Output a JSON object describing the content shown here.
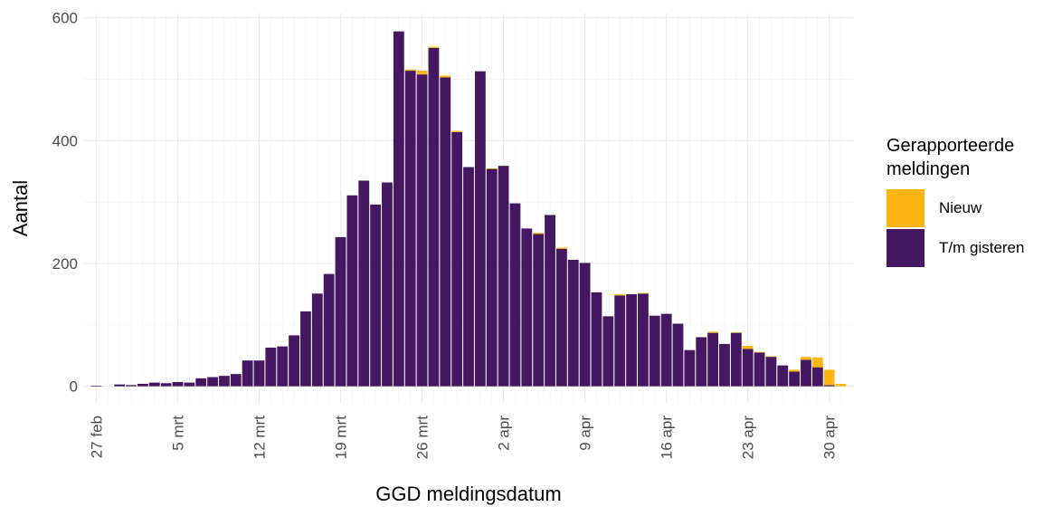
{
  "chart_data": {
    "type": "stacked_bar",
    "x_label": "GGD meldingsdatum",
    "y_label": "Aantal",
    "legend_title": "Gerapporteerde meldingen",
    "categories": [
      "27 feb",
      null,
      null,
      null,
      null,
      null,
      null,
      "5 mrt",
      null,
      null,
      null,
      null,
      null,
      null,
      "12 mrt",
      null,
      null,
      null,
      null,
      null,
      null,
      "19 mrt",
      null,
      null,
      null,
      null,
      null,
      null,
      "26 mrt",
      null,
      null,
      null,
      null,
      null,
      null,
      "2 apr",
      null,
      null,
      null,
      null,
      null,
      null,
      "9 apr",
      null,
      null,
      null,
      null,
      null,
      null,
      "16 apr",
      null,
      null,
      null,
      null,
      null,
      null,
      "23 apr",
      null,
      null,
      null,
      null,
      null,
      null,
      "30 apr",
      null
    ],
    "series": [
      {
        "name": "T/m gisteren",
        "color": "#451761",
        "values": [
          1,
          0,
          3,
          2,
          4,
          6,
          5,
          7,
          6,
          13,
          15,
          17,
          20,
          42,
          42,
          63,
          65,
          83,
          122,
          151,
          183,
          243,
          311,
          335,
          296,
          332,
          578,
          514,
          508,
          551,
          503,
          414,
          357,
          513,
          354,
          359,
          298,
          257,
          248,
          279,
          224,
          206,
          201,
          153,
          114,
          148,
          150,
          151,
          115,
          118,
          102,
          59,
          80,
          87,
          69,
          87,
          61,
          55,
          48,
          34,
          24,
          43,
          31,
          2,
          0
        ]
      },
      {
        "name": "Nieuw",
        "color": "#fbb616",
        "values": [
          0,
          0,
          0,
          0,
          0,
          0,
          0,
          0,
          0,
          0,
          0,
          0,
          0,
          0,
          0,
          0,
          0,
          0,
          0,
          0,
          0,
          0,
          0,
          0,
          0,
          0,
          0,
          2,
          6,
          2,
          3,
          2,
          0,
          0,
          1,
          0,
          0,
          0,
          2,
          0,
          2,
          0,
          0,
          0,
          0,
          2,
          0,
          1,
          0,
          0,
          0,
          0,
          0,
          2,
          0,
          1,
          5,
          1,
          1,
          0,
          3,
          5,
          16,
          25,
          4
        ]
      }
    ],
    "legend_order": [
      "Nieuw",
      "T/m gisteren"
    ],
    "ylim": [
      -27,
      607
    ],
    "yticks": [
      0,
      200,
      400,
      600
    ],
    "grid": true
  }
}
